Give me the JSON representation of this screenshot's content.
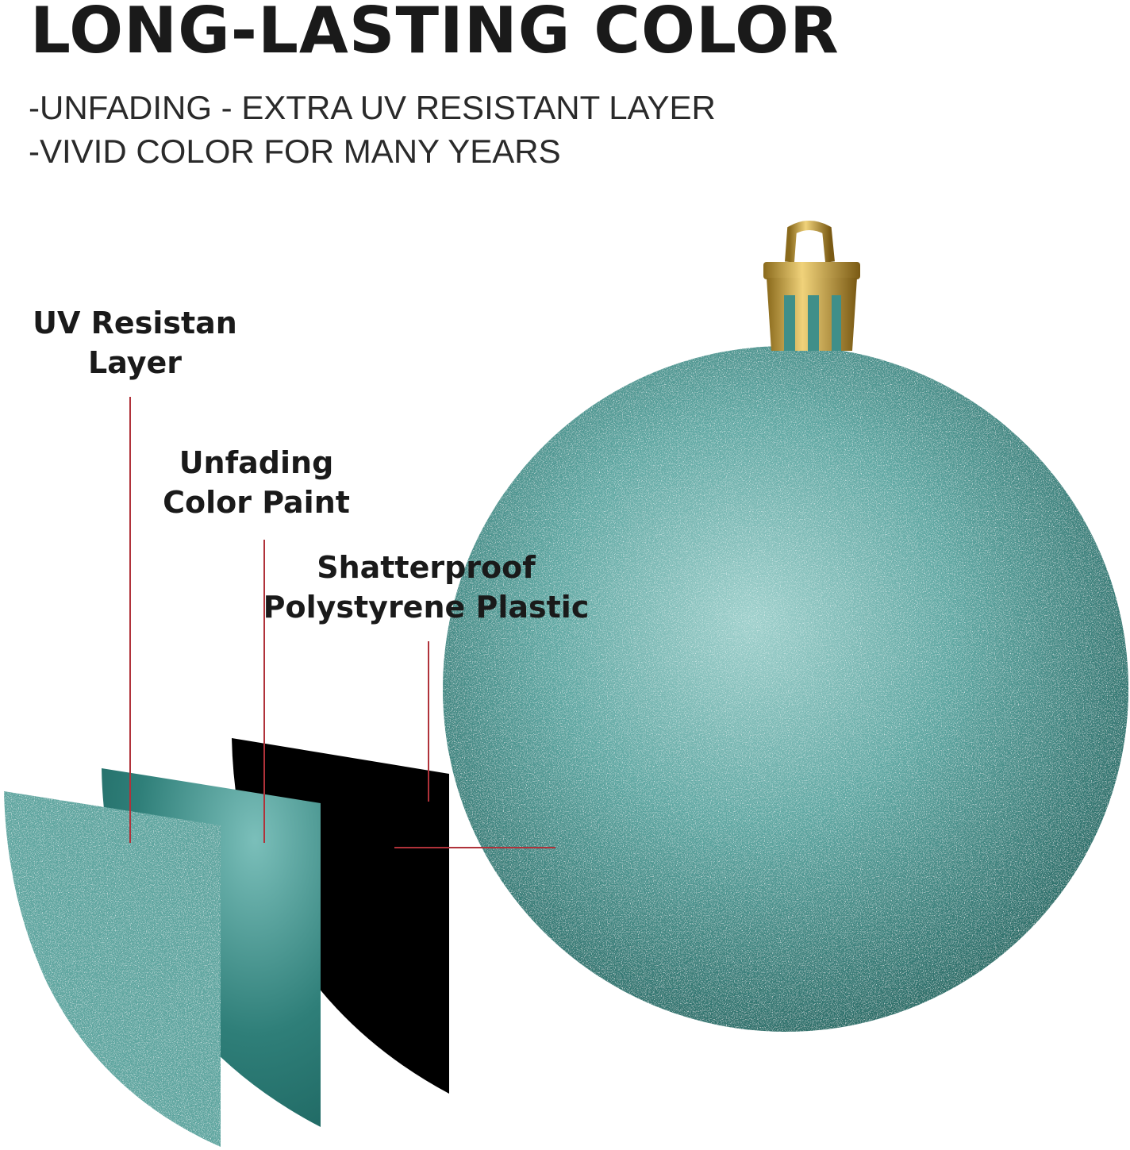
{
  "heading": "LONG-LASTING COLOR",
  "features": [
    "-UNFADING - EXTRA UV RESISTANT LAYER",
    "-VIVID COLOR FOR MANY YEARS"
  ],
  "layers": [
    {
      "line1": "UV Resistan",
      "line2": "Layer"
    },
    {
      "line1": "Unfading",
      "line2": "Color Paint"
    },
    {
      "line1": "Shatterproof",
      "line2": "Polystyrene Plastic"
    }
  ],
  "colors": {
    "ornament": "#5fa8a3",
    "paint": "#2a7a74",
    "plastic": "#000000",
    "leader": "#b0323a",
    "cap": "#c9a238"
  }
}
